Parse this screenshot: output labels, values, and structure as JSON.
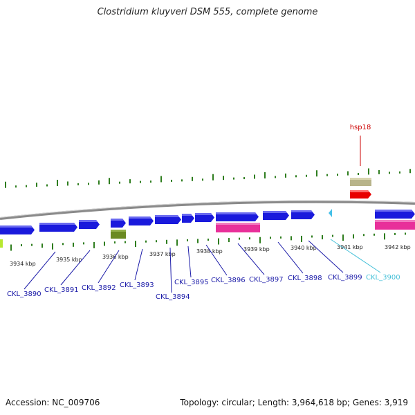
{
  "title": "Clostridium kluyveri DSM 555, complete genome",
  "footer": {
    "accession": "Accession: NC_009706",
    "stats": "Topology: circular; Length: 3,964,618 bp; Genes: 3,919"
  },
  "colors": {
    "cds": "#1a1adc",
    "gene_label": "#1a1aa8",
    "highlight_label": "#44c0d8",
    "hsp_label": "#cc0000",
    "tick": "#2e7d1e",
    "backbone": "#8a8a8a",
    "pink": "#e8309a",
    "olive": "#6b8a22",
    "khaki": "#b8b48a",
    "red": "#e80000",
    "cyan": "#44c0e8",
    "lime": "#b8e830"
  },
  "kbp_ticks": [
    "3934 kbp",
    "3935 kbp",
    "3936 kbp",
    "3937 kbp",
    "3938 kbp",
    "3939 kbp",
    "3940 kbp",
    "3941 kbp",
    "3942 kbp"
  ],
  "genes": [
    {
      "label": "CKL_3890",
      "color": "blue"
    },
    {
      "label": "CKL_3891",
      "color": "blue"
    },
    {
      "label": "CKL_3892",
      "color": "blue"
    },
    {
      "label": "CKL_3893",
      "color": "blue"
    },
    {
      "label": "CKL_3894",
      "color": "blue"
    },
    {
      "label": "CKL_3895",
      "color": "blue"
    },
    {
      "label": "CKL_3896",
      "color": "blue"
    },
    {
      "label": "CKL_3897",
      "color": "blue"
    },
    {
      "label": "CKL_3898",
      "color": "blue"
    },
    {
      "label": "CKL_3899",
      "color": "blue"
    },
    {
      "label": "CKL_3900",
      "color": "cyan"
    }
  ],
  "feature_label": "hsp18"
}
